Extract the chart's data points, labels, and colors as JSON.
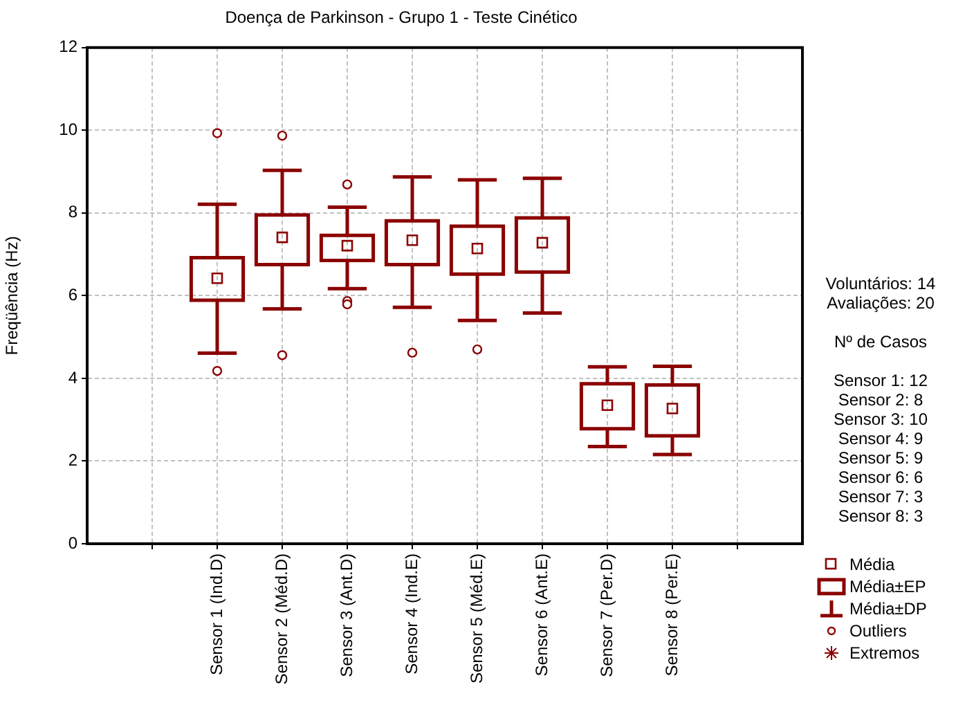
{
  "chart_data": {
    "type": "box",
    "title": "Doença de Parkinson - Grupo 1 - Teste Cinético",
    "ylabel": "Freqüência (Hz)",
    "categories": [
      null,
      "Sensor 1 (Ind.D)",
      "Sensor 2 (Méd.D)",
      "Sensor 3 (Ant.D)",
      "Sensor 4 (Ind.E)",
      "Sensor 5 (Méd.E)",
      "Sensor 6 (Ant.E)",
      "Sensor 7 (Per.D)",
      "Sensor 8 (Per.E)",
      null
    ],
    "color": "#8b0000",
    "boxes": [
      null,
      {
        "low": 4.61,
        "q1": 5.89,
        "median": 6.42,
        "q3": 6.92,
        "high": 8.21,
        "outliers": [
          9.93,
          4.18
        ]
      },
      {
        "low": 5.68,
        "q1": 6.75,
        "median": 7.41,
        "q3": 7.95,
        "high": 9.03,
        "outliers": [
          9.87,
          4.56
        ]
      },
      {
        "low": 6.17,
        "q1": 6.85,
        "median": 7.21,
        "q3": 7.46,
        "high": 8.14,
        "outliers": [
          8.69,
          5.87,
          5.79
        ]
      },
      {
        "low": 5.72,
        "q1": 6.75,
        "median": 7.34,
        "q3": 7.81,
        "high": 8.87,
        "outliers": [
          4.62
        ]
      },
      {
        "low": 5.4,
        "q1": 6.52,
        "median": 7.14,
        "q3": 7.68,
        "high": 8.8,
        "outliers": [
          4.7
        ]
      },
      {
        "low": 5.58,
        "q1": 6.57,
        "median": 7.28,
        "q3": 7.88,
        "high": 8.84
      },
      {
        "low": 2.35,
        "q1": 2.78,
        "median": 3.35,
        "q3": 3.87,
        "high": 4.28
      },
      {
        "low": 2.16,
        "q1": 2.61,
        "median": 3.27,
        "q3": 3.84,
        "high": 4.29
      },
      null
    ],
    "ylim": [
      0,
      12
    ],
    "yticks": [
      0,
      2,
      4,
      6,
      8,
      10,
      12
    ],
    "grid": true,
    "annotations": [
      "Voluntários: 14",
      "Avaliações: 20",
      "Nº de Casos",
      "Sensor 1: 12",
      "Sensor 2: 8",
      "Sensor 3: 10",
      "Sensor 4: 9",
      "Sensor 5: 9",
      "Sensor 6: 6",
      "Sensor 7: 3",
      "Sensor 8: 3",
      "Média",
      "Média±EP",
      "Média±DP",
      "Outliers",
      "Extremos"
    ]
  }
}
